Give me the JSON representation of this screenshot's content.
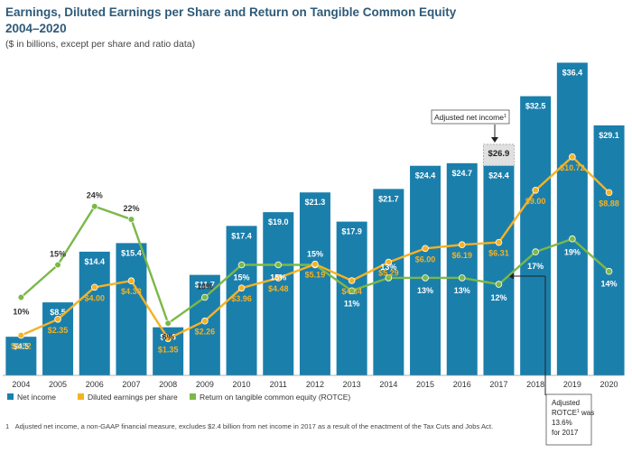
{
  "title_line1": "Earnings, Diluted Earnings per Share and Return on Tangible Common Equity",
  "title_line2": "2004–2020",
  "subtitle": "($ in billions, except per share and ratio data)",
  "colors": {
    "net_income": "#1b7fac",
    "eps": "#f5b223",
    "rotce": "#7bb848",
    "callout_box": "#e0e0e0"
  },
  "legend": {
    "net_income": "Net income",
    "eps": "Diluted earnings per share",
    "rotce": "Return on tangible common equity (ROTCE)"
  },
  "callout_adjusted": {
    "label": "Adjusted net income",
    "sup": "1",
    "value_label": "$26.9",
    "value": 26.9
  },
  "callout_rotce": {
    "line1": "Adjusted",
    "line2a": "ROTCE",
    "sup": "1",
    "line2b": " was",
    "line3": "13.6%",
    "line4": "for 2017"
  },
  "footnote": {
    "number": "1",
    "text": "Adjusted net income, a non-GAAP financial measure, excludes $2.4 billion from net income in 2017 as a result of the enactment of the Tax Cuts and Jobs Act."
  },
  "chart_data": {
    "type": "bar",
    "categories": [
      "2004",
      "2005",
      "2006",
      "2007",
      "2008",
      "2009",
      "2010",
      "2011",
      "2012",
      "2013",
      "2014",
      "2015",
      "2016",
      "2017",
      "2018",
      "2019",
      "2020"
    ],
    "series": [
      {
        "name": "Net income",
        "type": "bar",
        "values": [
          4.5,
          8.5,
          14.4,
          15.4,
          5.6,
          11.7,
          17.4,
          19.0,
          21.3,
          17.9,
          21.7,
          24.4,
          24.7,
          24.4,
          32.5,
          36.4,
          29.1
        ],
        "labels": [
          "$4.5",
          "$8.5",
          "$14.4",
          "$15.4",
          "$5.6",
          "$11.7",
          "$17.4",
          "$19.0",
          "$21.3",
          "$17.9",
          "$21.7",
          "$24.4",
          "$24.7",
          "$24.4",
          "$32.5",
          "$36.4",
          "$29.1"
        ]
      },
      {
        "name": "Diluted earnings per share",
        "type": "line",
        "values": [
          1.52,
          2.35,
          4.0,
          4.33,
          1.35,
          2.26,
          3.96,
          4.48,
          5.19,
          4.34,
          5.29,
          6.0,
          6.19,
          6.31,
          9.0,
          10.72,
          8.88
        ],
        "labels": [
          "$1.52",
          "$2.35",
          "$4.00",
          "$4.33",
          "$1.35",
          "$2.26",
          "$3.96",
          "$4.48",
          "$5.19",
          "$4.34",
          "$5.29",
          "$6.00",
          "$6.19",
          "$6.31",
          "$9.00",
          "$10.72",
          "$8.88"
        ]
      },
      {
        "name": "Return on tangible common equity (ROTCE)",
        "type": "line",
        "values": [
          10,
          15,
          24,
          22,
          6,
          10,
          15,
          15,
          15,
          11,
          13,
          13,
          13,
          12,
          17,
          19,
          14
        ],
        "labels": [
          "10%",
          "15%",
          "24%",
          "22%",
          "6%",
          "10%",
          "15%",
          "15%",
          "15%",
          "11%",
          "13%",
          "13%",
          "13%",
          "12%",
          "17%",
          "19%",
          "14%"
        ]
      }
    ]
  }
}
